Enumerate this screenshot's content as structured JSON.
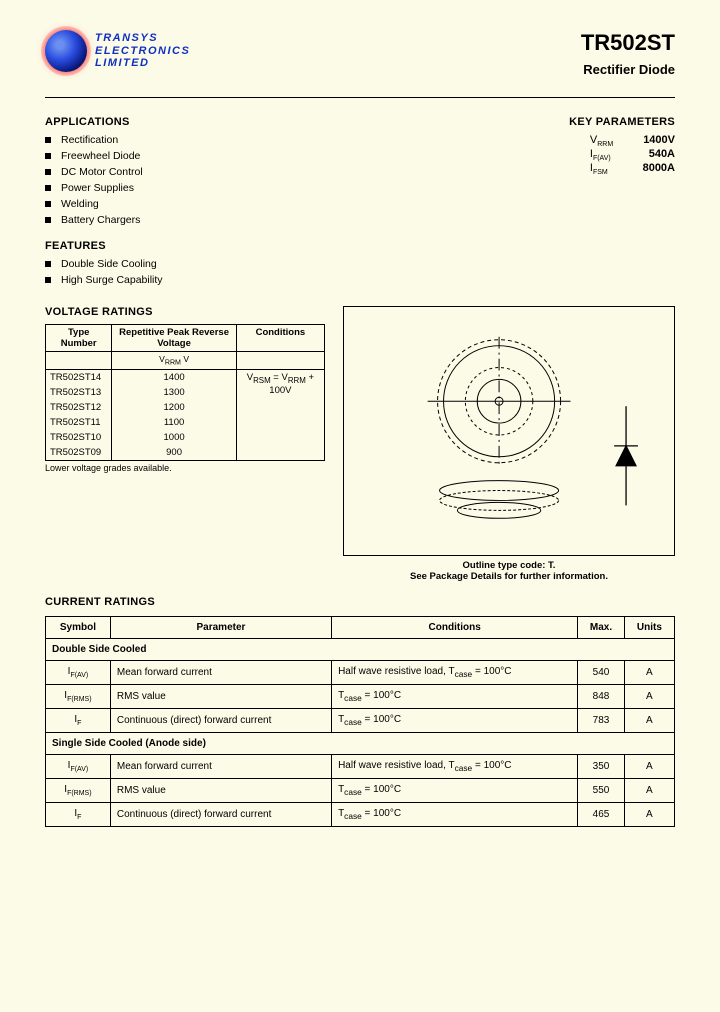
{
  "company": {
    "line1": "TRANSYS",
    "line2": "ELECTRONICS",
    "line3": "LIMITED"
  },
  "title": {
    "part": "TR502ST",
    "sub": "Rectifier Diode"
  },
  "sections": {
    "apps": "APPLICATIONS",
    "features": "FEATURES",
    "voltage": "VOLTAGE RATINGS",
    "current": "CURRENT RATINGS",
    "keyparams": "KEY PARAMETERS"
  },
  "applications": [
    "Rectification",
    "Freewheel Diode",
    "DC Motor Control",
    "Power Supplies",
    "Welding",
    "Battery Chargers"
  ],
  "features": [
    "Double Side Cooling",
    "High Surge Capability"
  ],
  "key_params": [
    {
      "sym": "V",
      "sub": "RRM",
      "val": "1400V"
    },
    {
      "sym": "I",
      "sub": "F(AV)",
      "val": "540A"
    },
    {
      "sym": "I",
      "sub": "FSM",
      "val": "8000A"
    }
  ],
  "voltage_table": {
    "headers": [
      "Type Number",
      "Repetitive Peak Reverse Voltage",
      "Conditions"
    ],
    "sub": [
      "",
      "V_RRM  V",
      ""
    ],
    "rows": [
      [
        "TR502ST14",
        "1400",
        "V_RSM = V_RRM + 100V"
      ],
      [
        "TR502ST13",
        "1300",
        ""
      ],
      [
        "TR502ST12",
        "1200",
        ""
      ],
      [
        "TR502ST11",
        "1100",
        ""
      ],
      [
        "TR502ST10",
        "1000",
        ""
      ],
      [
        "TR502ST09",
        "900",
        ""
      ]
    ],
    "note": "Lower voltage grades available."
  },
  "diagram": {
    "caption": "Outline type code: T.",
    "sub": "See Package Details for further information."
  },
  "current_table": {
    "headers": [
      "Symbol",
      "Parameter",
      "Conditions",
      "Max.",
      "Units"
    ],
    "sections": [
      {
        "title": "Double Side Cooled",
        "rows": [
          {
            "sym": "I",
            "sub": "F(AV)",
            "param": "Mean forward current",
            "cond": "Half wave resistive load, T_case = 100°C",
            "max": "540",
            "units": "A"
          },
          {
            "sym": "I",
            "sub": "F(RMS)",
            "param": "RMS value",
            "cond": "T_case = 100°C",
            "max": "848",
            "units": "A"
          },
          {
            "sym": "I",
            "sub": "F",
            "param": "Continuous (direct) forward current",
            "cond": "T_case = 100°C",
            "max": "783",
            "units": "A"
          }
        ]
      },
      {
        "title": "Single Side Cooled (Anode side)",
        "rows": [
          {
            "sym": "I",
            "sub": "F(AV)",
            "param": "Mean forward current",
            "cond": "Half wave resistive load, T_case = 100°C",
            "max": "350",
            "units": "A"
          },
          {
            "sym": "I",
            "sub": "F(RMS)",
            "param": "RMS value",
            "cond": "T_case = 100°C",
            "max": "550",
            "units": "A"
          },
          {
            "sym": "I",
            "sub": "F",
            "param": "Continuous (direct) forward current",
            "cond": "T_case = 100°C",
            "max": "465",
            "units": "A"
          }
        ]
      }
    ]
  }
}
